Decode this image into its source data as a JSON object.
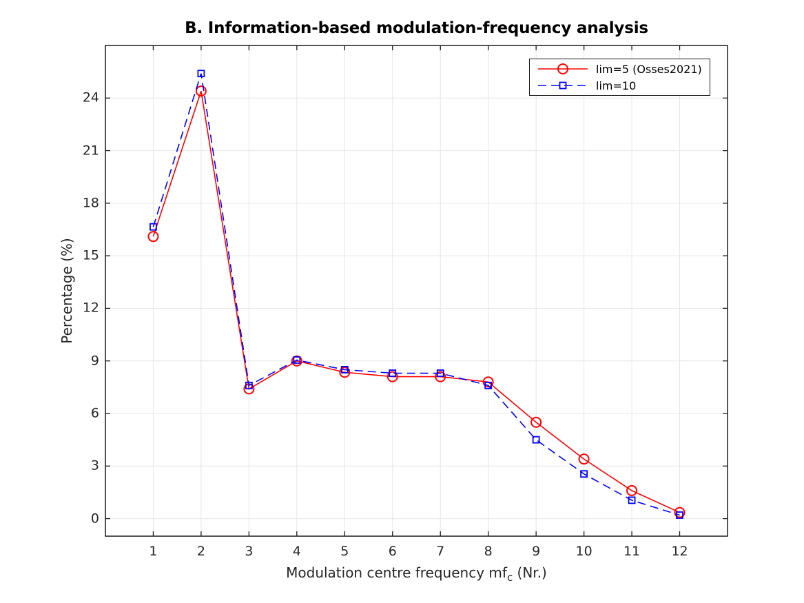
{
  "title": "B. Information-based modulation-frequency analysis",
  "chart_data": {
    "type": "line",
    "title": "B. Information-based modulation-frequency analysis",
    "xlabel": "Modulation centre frequency mf_c (Nr.)",
    "xlabel_parts": {
      "prefix": "Modulation centre frequency mf",
      "sub": "c",
      "suffix": " (Nr.)"
    },
    "ylabel": "Percentage (%)",
    "x": [
      1,
      2,
      3,
      4,
      5,
      6,
      7,
      8,
      9,
      10,
      11,
      12
    ],
    "series": [
      {
        "name": "lim=5 (Osses2021)",
        "color": "#ff0000",
        "marker": "circle",
        "line_style": "solid",
        "values": [
          16.1,
          24.4,
          7.4,
          9.0,
          8.35,
          8.1,
          8.1,
          7.8,
          5.5,
          3.4,
          1.6,
          0.35
        ]
      },
      {
        "name": "lim=10",
        "color": "#0000ff",
        "marker": "square",
        "line_style": "dashed",
        "values": [
          16.65,
          25.4,
          7.6,
          9.05,
          8.5,
          8.3,
          8.3,
          7.6,
          4.5,
          2.55,
          1.05,
          0.2
        ]
      }
    ],
    "xticks": [
      1,
      2,
      3,
      4,
      5,
      6,
      7,
      8,
      9,
      10,
      11,
      12
    ],
    "yticks": [
      0,
      3,
      6,
      9,
      12,
      15,
      18,
      21,
      24
    ],
    "xlim": [
      0,
      13
    ],
    "ylim": [
      -1,
      27
    ],
    "grid": true,
    "legend_position": "top-right",
    "grid_color": "#e6e6e6",
    "axis_color": "#1a1a1a",
    "tick_label_color": "#262626"
  }
}
